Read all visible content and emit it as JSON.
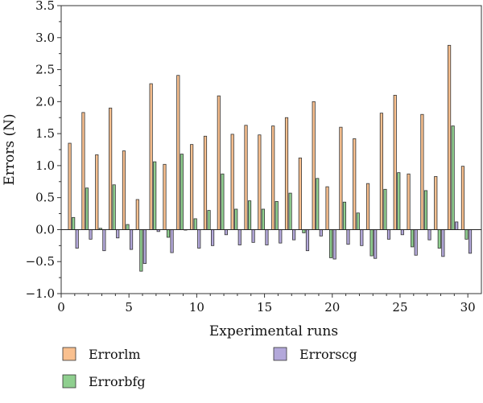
{
  "chart_data": {
    "type": "bar",
    "xlabel": "Experimental runs",
    "ylabel": "Errors (N)",
    "xlim": [
      0,
      31
    ],
    "ylim": [
      -1.0,
      3.5
    ],
    "xticks": [
      "0",
      "5",
      "10",
      "15",
      "20",
      "25",
      "30"
    ],
    "yticks": [
      "−1.0",
      "−0.5",
      "0.0",
      "0.5",
      "1.0",
      "1.5",
      "2.0",
      "2.5",
      "3.0",
      "3.5"
    ],
    "grid": false,
    "legend_position": "bottom",
    "x": [
      1,
      2,
      3,
      4,
      5,
      6,
      7,
      8,
      9,
      10,
      11,
      12,
      13,
      14,
      15,
      16,
      17,
      18,
      19,
      20,
      21,
      22,
      23,
      24,
      25,
      26,
      27,
      28,
      29,
      30
    ],
    "series": [
      {
        "name": "Errorlm",
        "color": "#f9c08f",
        "values": [
          1.35,
          1.83,
          1.17,
          1.9,
          1.23,
          0.47,
          2.28,
          1.02,
          2.41,
          1.33,
          1.46,
          2.09,
          1.49,
          1.63,
          1.48,
          1.62,
          1.75,
          1.12,
          2.0,
          0.67,
          1.6,
          1.42,
          0.72,
          1.82,
          2.1,
          0.87,
          1.8,
          0.83,
          2.88,
          0.99
        ]
      },
      {
        "name": "Errorbfg",
        "color": "#8fcf8f",
        "values": [
          0.19,
          0.65,
          0.02,
          0.7,
          0.08,
          -0.65,
          1.06,
          -0.12,
          1.18,
          0.17,
          0.3,
          0.87,
          0.32,
          0.45,
          0.32,
          0.44,
          0.57,
          -0.05,
          0.8,
          -0.44,
          0.43,
          0.26,
          -0.41,
          0.63,
          0.89,
          -0.27,
          0.61,
          -0.29,
          1.62,
          -0.15
        ]
      },
      {
        "name": "Errorscg",
        "color": "#b3a8da",
        "values": [
          -0.29,
          -0.15,
          -0.33,
          -0.13,
          -0.31,
          -0.53,
          -0.03,
          -0.36,
          0.0,
          -0.29,
          -0.25,
          -0.08,
          -0.24,
          -0.2,
          -0.24,
          -0.21,
          -0.16,
          -0.33,
          -0.1,
          -0.46,
          -0.23,
          -0.25,
          -0.45,
          -0.15,
          -0.08,
          -0.4,
          -0.16,
          -0.42,
          0.12,
          -0.37
        ]
      }
    ]
  }
}
